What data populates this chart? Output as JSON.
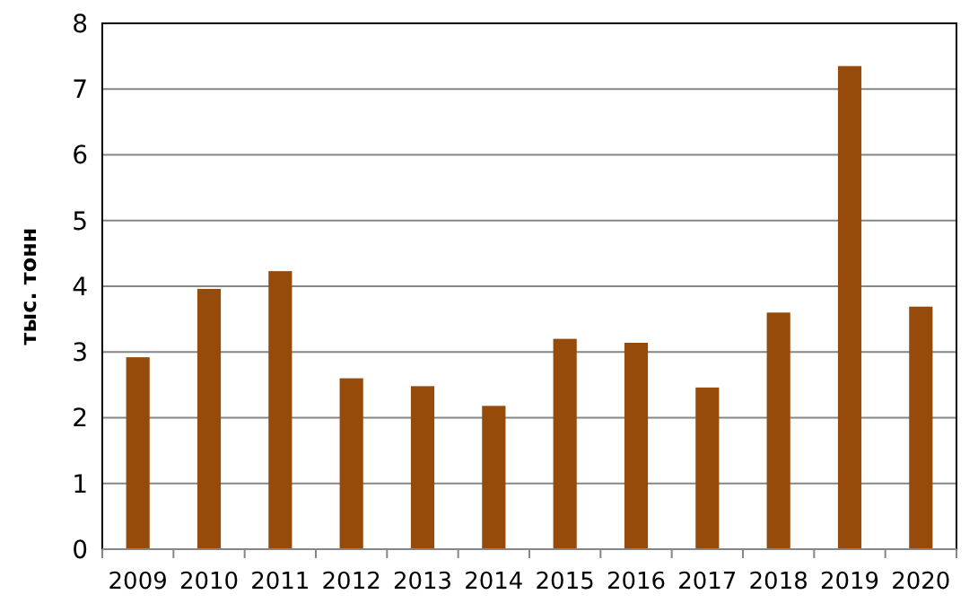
{
  "chart_data": {
    "type": "bar",
    "ylabel": "тыс. тонн",
    "categories": [
      "2009",
      "2010",
      "2011",
      "2012",
      "2013",
      "2014",
      "2015",
      "2016",
      "2017",
      "2018",
      "2019",
      "2020"
    ],
    "values": [
      2.92,
      3.96,
      4.23,
      2.6,
      2.48,
      2.18,
      3.2,
      3.14,
      2.46,
      3.6,
      7.35,
      3.69
    ],
    "color": "#964b0a",
    "ylim": [
      0,
      8
    ],
    "yticks": [
      0,
      1,
      2,
      3,
      4,
      5,
      6,
      7,
      8
    ],
    "grid": "y"
  }
}
